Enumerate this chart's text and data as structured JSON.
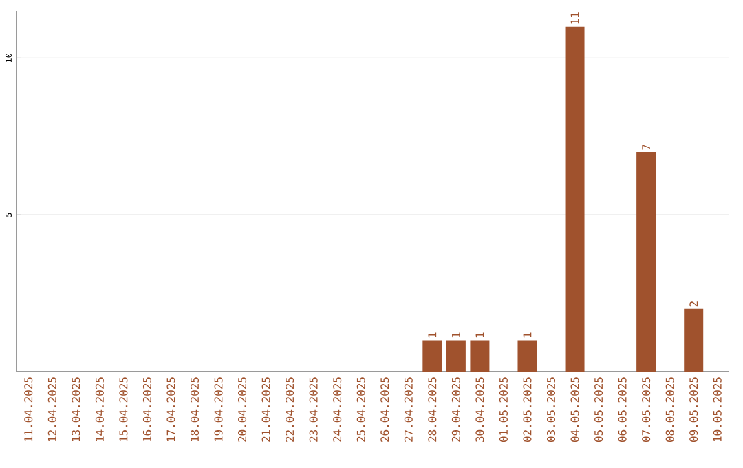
{
  "chart_data": {
    "type": "bar",
    "categories": [
      "11.04.2025",
      "12.04.2025",
      "13.04.2025",
      "14.04.2025",
      "15.04.2025",
      "16.04.2025",
      "17.04.2025",
      "18.04.2025",
      "19.04.2025",
      "20.04.2025",
      "21.04.2025",
      "22.04.2025",
      "23.04.2025",
      "24.04.2025",
      "25.04.2025",
      "26.04.2025",
      "27.04.2025",
      "28.04.2025",
      "29.04.2025",
      "30.04.2025",
      "01.05.2025",
      "02.05.2025",
      "03.05.2025",
      "04.05.2025",
      "05.05.2025",
      "06.05.2025",
      "07.05.2025",
      "08.05.2025",
      "09.05.2025",
      "10.05.2025"
    ],
    "values": [
      0,
      0,
      0,
      0,
      0,
      0,
      0,
      0,
      0,
      0,
      0,
      0,
      0,
      0,
      0,
      0,
      0,
      1,
      1,
      1,
      0,
      1,
      0,
      11,
      0,
      0,
      7,
      0,
      2,
      0
    ],
    "value_labels": [
      null,
      null,
      null,
      null,
      null,
      null,
      null,
      null,
      null,
      null,
      null,
      null,
      null,
      null,
      null,
      null,
      null,
      "1",
      "1",
      "1",
      null,
      "1",
      null,
      "11",
      null,
      null,
      "7",
      null,
      "2",
      null
    ],
    "color": "#a0522d",
    "ylim": [
      0,
      11.5
    ],
    "yticks": [
      5,
      10
    ],
    "grid": "y"
  }
}
